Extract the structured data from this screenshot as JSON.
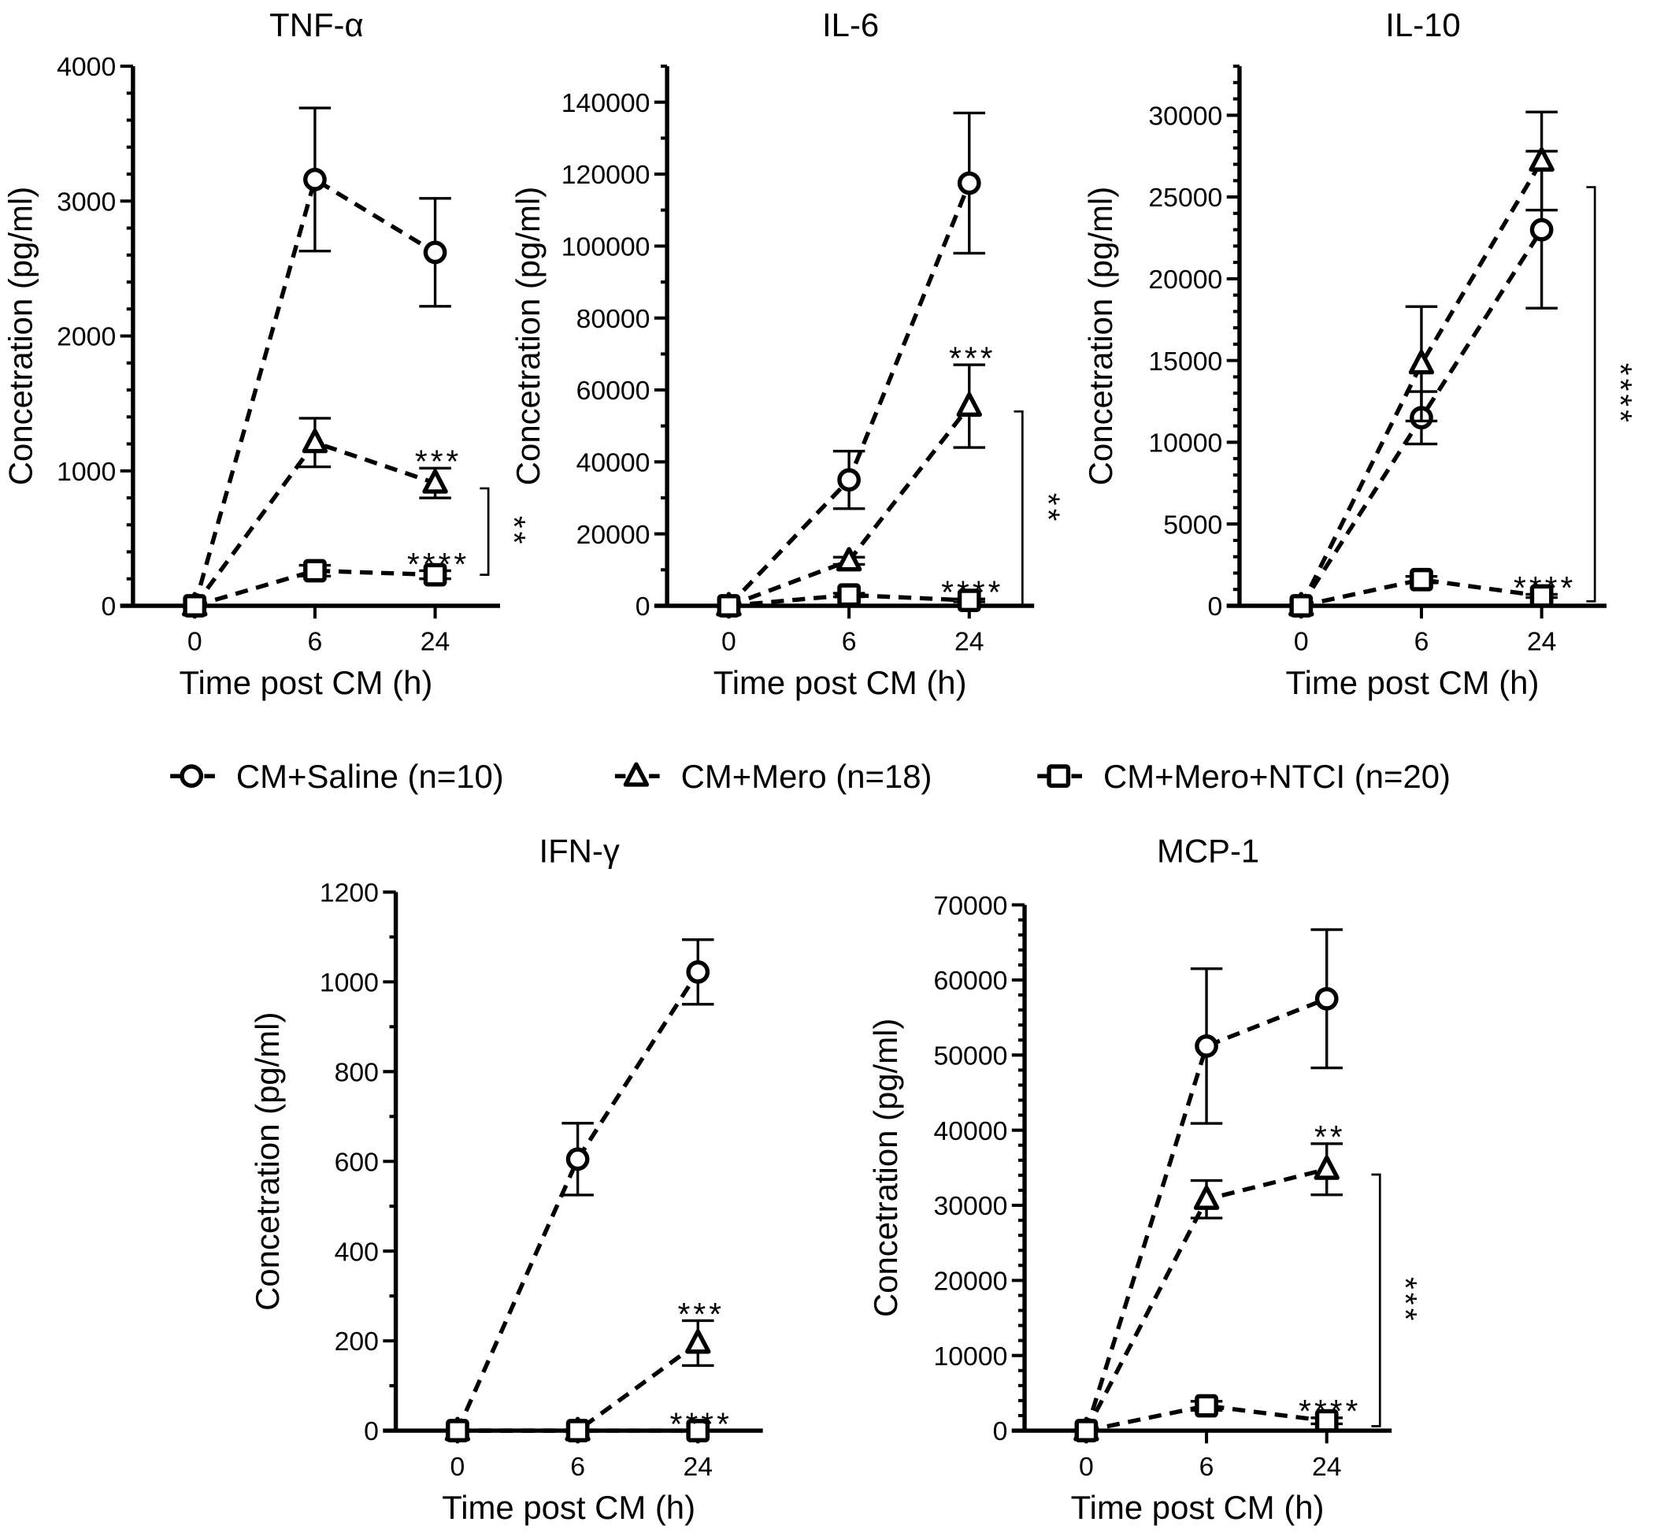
{
  "legend": [
    {
      "label": "CM+Saline (n=10)",
      "marker": "circle"
    },
    {
      "label": "CM+Mero (n=18)",
      "marker": "triangle"
    },
    {
      "label": "CM+Mero+NTCI (n=20)",
      "marker": "square"
    }
  ],
  "colors": {
    "ink": "#000000",
    "background": "#ffffff"
  },
  "chart_data": [
    {
      "type": "line",
      "title": "TNF-α",
      "xlabel": "Time post CM (h)",
      "ylabel": "Concetration (pg/ml)",
      "categories": [
        "0",
        "6",
        "24"
      ],
      "ylim": [
        0,
        4000
      ],
      "yticks": [
        0,
        1000,
        2000,
        3000,
        4000
      ],
      "minor_per_major": 4,
      "series": [
        {
          "name": "CM+Saline (n=10)",
          "values": [
            0,
            3160,
            2620
          ],
          "errors": [
            0,
            530,
            400
          ]
        },
        {
          "name": "CM+Mero (n=18)",
          "values": [
            0,
            1210,
            910
          ],
          "errors": [
            0,
            180,
            110
          ]
        },
        {
          "name": "CM+Mero+NTCI (n=20)",
          "values": [
            0,
            260,
            230
          ],
          "errors": [
            0,
            40,
            30
          ]
        }
      ],
      "annotations": [
        {
          "series": 1,
          "x": "24",
          "text": "***"
        },
        {
          "series": 2,
          "x": "24",
          "text": "****"
        }
      ],
      "bracket": {
        "from_series": 1,
        "to_series": 2,
        "text": "**"
      }
    },
    {
      "type": "line",
      "title": "IL-6",
      "xlabel": "Time post CM (h)",
      "ylabel": "Concetration (pg/ml)",
      "categories": [
        "0",
        "6",
        "24"
      ],
      "ylim": [
        0,
        150000
      ],
      "yticks": [
        0,
        20000,
        40000,
        60000,
        80000,
        100000,
        120000,
        140000
      ],
      "minor_per_major": 1,
      "series": [
        {
          "name": "CM+Saline (n=10)",
          "values": [
            0,
            35000,
            117500
          ],
          "errors": [
            0,
            8000,
            19500
          ]
        },
        {
          "name": "CM+Mero (n=18)",
          "values": [
            0,
            12500,
            55500
          ],
          "errors": [
            0,
            1000,
            11500
          ]
        },
        {
          "name": "CM+Mero+NTCI (n=20)",
          "values": [
            0,
            3000,
            1500
          ],
          "errors": [
            0,
            500,
            400
          ]
        }
      ],
      "annotations": [
        {
          "series": 1,
          "x": "24",
          "text": "***"
        },
        {
          "series": 2,
          "x": "24",
          "text": "****"
        }
      ],
      "bracket": {
        "from_series": 1,
        "to_series": 2,
        "text": "**"
      }
    },
    {
      "type": "line",
      "title": "IL-10",
      "xlabel": "Time post CM (h)",
      "ylabel": "Concetration (pg/ml)",
      "categories": [
        "0",
        "6",
        "24"
      ],
      "ylim": [
        0,
        33000
      ],
      "yticks": [
        0,
        5000,
        10000,
        15000,
        20000,
        25000,
        30000
      ],
      "minor_per_major": 4,
      "series": [
        {
          "name": "CM+Saline (n=10)",
          "values": [
            0,
            11500,
            23000
          ],
          "errors": [
            0,
            1600,
            4800
          ]
        },
        {
          "name": "CM+Mero (n=18)",
          "values": [
            0,
            14800,
            27200
          ],
          "errors": [
            0,
            3500,
            3000
          ]
        },
        {
          "name": "CM+Mero+NTCI (n=20)",
          "values": [
            0,
            1600,
            600
          ],
          "errors": [
            0,
            200,
            100
          ]
        }
      ],
      "annotations": [
        {
          "series": 2,
          "x": "24",
          "text": "****"
        }
      ],
      "bracket": {
        "from_series": 0,
        "to_series": 2,
        "text": "****"
      }
    },
    {
      "type": "line",
      "title": "IFN-γ",
      "xlabel": "Time post CM (h)",
      "ylabel": "Concetration (pg/ml)",
      "categories": [
        "0",
        "6",
        "24"
      ],
      "ylim": [
        0,
        1200
      ],
      "yticks": [
        0,
        200,
        400,
        600,
        800,
        1000,
        1200
      ],
      "minor_per_major": 1,
      "series": [
        {
          "name": "CM+Saline (n=10)",
          "values": [
            0,
            605,
            1022
          ],
          "errors": [
            0,
            80,
            72
          ]
        },
        {
          "name": "CM+Mero (n=18)",
          "values": [
            0,
            0,
            195
          ],
          "errors": [
            0,
            0,
            50
          ]
        },
        {
          "name": "CM+Mero+NTCI (n=20)",
          "values": [
            0,
            0,
            0
          ],
          "errors": [
            0,
            0,
            0
          ]
        }
      ],
      "annotations": [
        {
          "series": 1,
          "x": "24",
          "text": "***"
        },
        {
          "series": 2,
          "x": "24",
          "text": "****"
        }
      ],
      "bracket": null
    },
    {
      "type": "line",
      "title": "MCP-1",
      "xlabel": "Time post CM (h)",
      "ylabel": "Concetration (pg/ml)",
      "categories": [
        "0",
        "6",
        "24"
      ],
      "ylim": [
        0,
        70000
      ],
      "yticks": [
        0,
        10000,
        20000,
        30000,
        40000,
        50000,
        60000,
        70000
      ],
      "minor_per_major": 4,
      "series": [
        {
          "name": "CM+Saline (n=10)",
          "values": [
            0,
            51200,
            57500
          ],
          "errors": [
            0,
            10300,
            9200
          ]
        },
        {
          "name": "CM+Mero (n=18)",
          "values": [
            0,
            30800,
            34800
          ],
          "errors": [
            0,
            2500,
            3400
          ]
        },
        {
          "name": "CM+Mero+NTCI (n=20)",
          "values": [
            0,
            3300,
            1300
          ],
          "errors": [
            0,
            600,
            400
          ]
        }
      ],
      "annotations": [
        {
          "series": 1,
          "x": "24",
          "text": "**"
        },
        {
          "series": 2,
          "x": "24",
          "text": "****"
        }
      ],
      "bracket": {
        "from_series": 1,
        "to_series": 2,
        "text": "***"
      }
    }
  ]
}
